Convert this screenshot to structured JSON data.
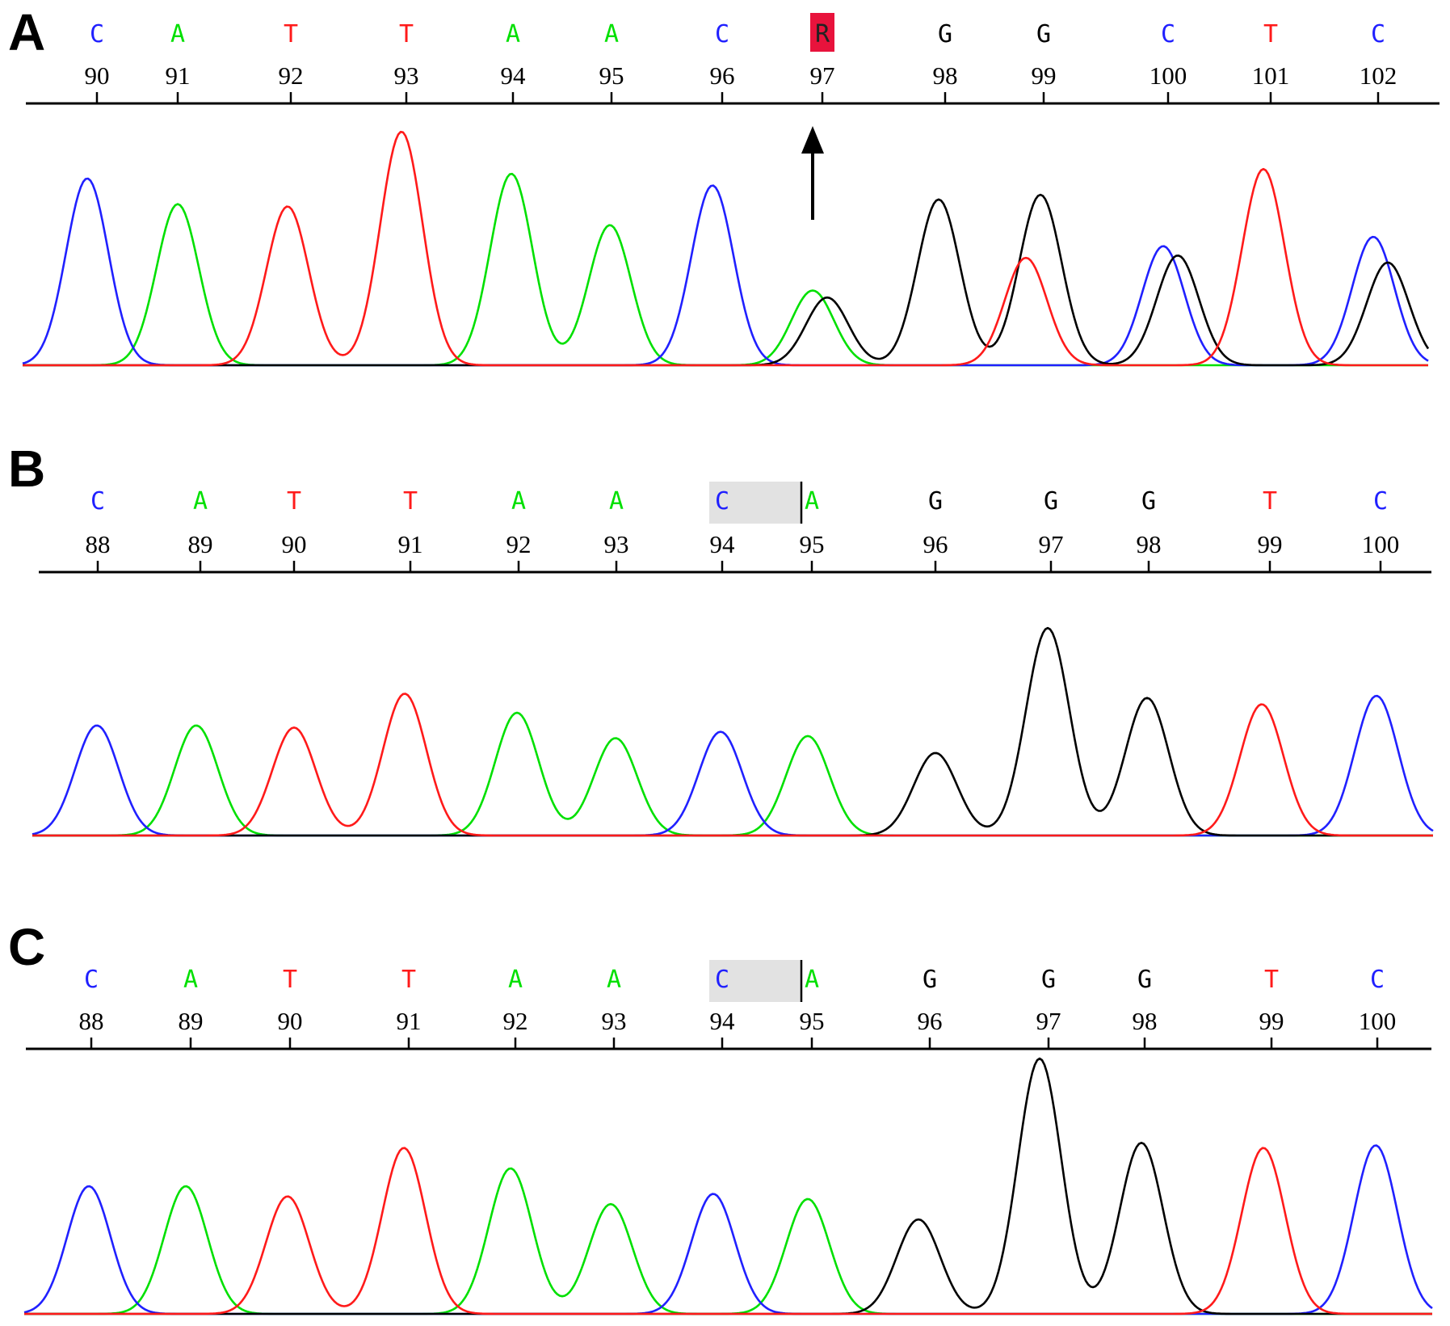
{
  "colors": {
    "A": "#00e000",
    "C": "#2020ff",
    "G": "#000000",
    "T": "#ff1a1a",
    "R": "#000000"
  },
  "chart_data": [
    {
      "type": "line",
      "panel": "A",
      "bases": [
        "C",
        "A",
        "T",
        "T",
        "A",
        "A",
        "C",
        "R",
        "G",
        "G",
        "C",
        "T",
        "C"
      ],
      "positions": [
        "90",
        "91",
        "92",
        "93",
        "94",
        "95",
        "96",
        "97",
        "98",
        "99",
        "100",
        "101",
        "102"
      ],
      "highlight": {
        "index": 7,
        "color": "#e8133c"
      },
      "arrow_at_index": 7,
      "peaks": [
        {
          "base": "C",
          "height": 0.8
        },
        {
          "base": "A",
          "height": 0.69
        },
        {
          "base": "T",
          "height": 0.68
        },
        {
          "base": "T",
          "height": 1.0
        },
        {
          "base": "A",
          "height": 0.82
        },
        {
          "base": "A",
          "height": 0.6
        },
        {
          "base": "C",
          "height": 0.77
        },
        {
          "base": "A",
          "height": 0.32,
          "secondary": {
            "base": "G",
            "height": 0.29
          }
        },
        {
          "base": "G",
          "height": 0.71
        },
        {
          "base": "G",
          "height": 0.73,
          "secondary": {
            "base": "T",
            "height": 0.46
          }
        },
        {
          "base": "C",
          "height": 0.51,
          "secondary": {
            "base": "G",
            "height": 0.47
          }
        },
        {
          "base": "T",
          "height": 0.84
        },
        {
          "base": "C",
          "height": 0.55,
          "secondary": {
            "base": "G",
            "height": 0.44
          }
        }
      ]
    },
    {
      "type": "line",
      "panel": "B",
      "bases": [
        "C",
        "A",
        "T",
        "T",
        "A",
        "A",
        "C",
        "A",
        "G",
        "G",
        "G",
        "T",
        "C"
      ],
      "positions": [
        "88",
        "89",
        "90",
        "91",
        "92",
        "93",
        "94",
        "95",
        "96",
        "97",
        "98",
        "99",
        "100"
      ],
      "shade": {
        "from_index": 6,
        "to_index": 7
      },
      "peaks": [
        {
          "base": "C",
          "height": 0.52
        },
        {
          "base": "A",
          "height": 0.52
        },
        {
          "base": "T",
          "height": 0.51
        },
        {
          "base": "T",
          "height": 0.67
        },
        {
          "base": "A",
          "height": 0.58
        },
        {
          "base": "A",
          "height": 0.46
        },
        {
          "base": "C",
          "height": 0.49
        },
        {
          "base": "A",
          "height": 0.47
        },
        {
          "base": "G",
          "height": 0.39
        },
        {
          "base": "G",
          "height": 0.98
        },
        {
          "base": "G",
          "height": 0.65
        },
        {
          "base": "T",
          "height": 0.62
        },
        {
          "base": "C",
          "height": 0.66
        }
      ]
    },
    {
      "type": "line",
      "panel": "C",
      "bases": [
        "C",
        "A",
        "T",
        "T",
        "A",
        "A",
        "C",
        "A",
        "G",
        "G",
        "G",
        "T",
        "C"
      ],
      "positions": [
        "88",
        "89",
        "90",
        "91",
        "92",
        "93",
        "94",
        "95",
        "96",
        "97",
        "98",
        "99",
        "100"
      ],
      "shade": {
        "from_index": 6,
        "to_index": 7
      },
      "peaks": [
        {
          "base": "C",
          "height": 0.5
        },
        {
          "base": "A",
          "height": 0.5
        },
        {
          "base": "T",
          "height": 0.46
        },
        {
          "base": "T",
          "height": 0.65
        },
        {
          "base": "A",
          "height": 0.57
        },
        {
          "base": "A",
          "height": 0.43
        },
        {
          "base": "C",
          "height": 0.47
        },
        {
          "base": "A",
          "height": 0.45
        },
        {
          "base": "G",
          "height": 0.37
        },
        {
          "base": "G",
          "height": 1.0
        },
        {
          "base": "G",
          "height": 0.67
        },
        {
          "base": "T",
          "height": 0.65
        },
        {
          "base": "C",
          "height": 0.66
        }
      ]
    }
  ]
}
